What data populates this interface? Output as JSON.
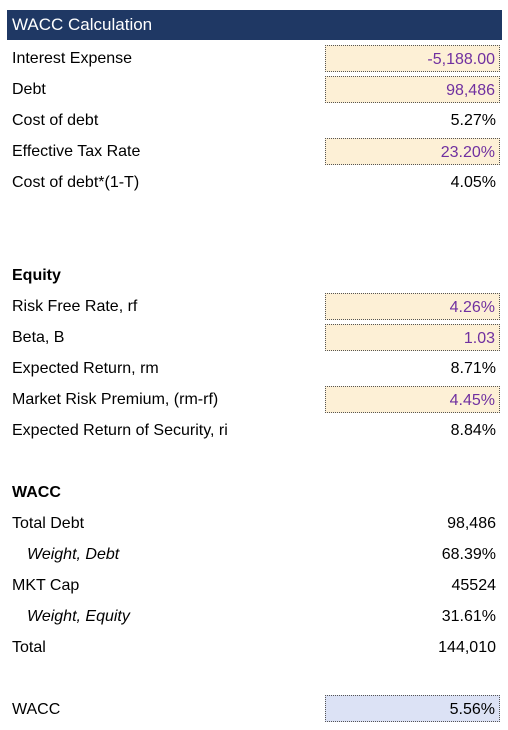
{
  "header": {
    "title": "WACC Calculation"
  },
  "sections": [
    {
      "rows": [
        {
          "label": "Interest Expense",
          "value": "-5,188.00"
        },
        {
          "label": "Debt",
          "value": "98,486"
        },
        {
          "label": "Cost of debt",
          "value": "5.27%"
        },
        {
          "label": "Effective Tax Rate",
          "value": "23.20%"
        },
        {
          "label": "Cost of debt*(1-T)",
          "value": "4.05%"
        }
      ]
    },
    {
      "title": "Equity",
      "rows": [
        {
          "label": "Risk Free Rate, rf",
          "value": "4.26%"
        },
        {
          "label": "Beta, B",
          "value": "1.03"
        },
        {
          "label": "Expected Return, rm",
          "value": "8.71%"
        },
        {
          "label": "Market Risk Premium, (rm-rf)",
          "value": "4.45%"
        },
        {
          "label": "Expected Return of Security, ri",
          "value": "8.84%"
        }
      ]
    },
    {
      "title": "WACC",
      "rows": [
        {
          "label": "Total Debt",
          "value": "98,486"
        },
        {
          "label": "Weight, Debt",
          "value": "68.39%"
        },
        {
          "label": "MKT Cap",
          "value": "45524"
        },
        {
          "label": "Weight, Equity",
          "value": "31.61%"
        },
        {
          "label": "Total",
          "value": "144,010"
        }
      ]
    },
    {
      "rows": [
        {
          "label": "WACC",
          "value": "5.56%"
        }
      ]
    }
  ]
}
